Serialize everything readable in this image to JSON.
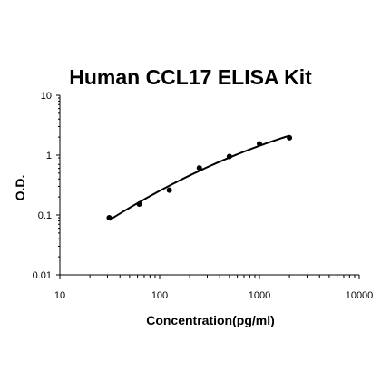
{
  "chart_data": {
    "type": "scatter",
    "title": "Human CCL17 ELISA Kit",
    "xlabel": "Concentration(pg/ml)",
    "ylabel": "O.D.",
    "xscale": "log",
    "yscale": "log",
    "xlim": [
      10,
      10000
    ],
    "ylim": [
      0.01,
      10
    ],
    "x_ticks": [
      10,
      100,
      1000,
      10000
    ],
    "x_tick_labels": [
      "10",
      "100",
      "1000",
      "10000"
    ],
    "y_ticks": [
      0.01,
      0.1,
      1,
      10
    ],
    "y_tick_labels": [
      "0.01",
      "0.1",
      "1",
      "10"
    ],
    "grid": false,
    "series": [
      {
        "x": [
          31.25,
          62.5,
          125,
          250,
          500,
          1000,
          2000
        ],
        "y": [
          0.09,
          0.152,
          0.26,
          0.61,
          0.95,
          1.55,
          1.95
        ],
        "marker": "circle",
        "fit_line": true,
        "color": "#000000"
      }
    ]
  }
}
